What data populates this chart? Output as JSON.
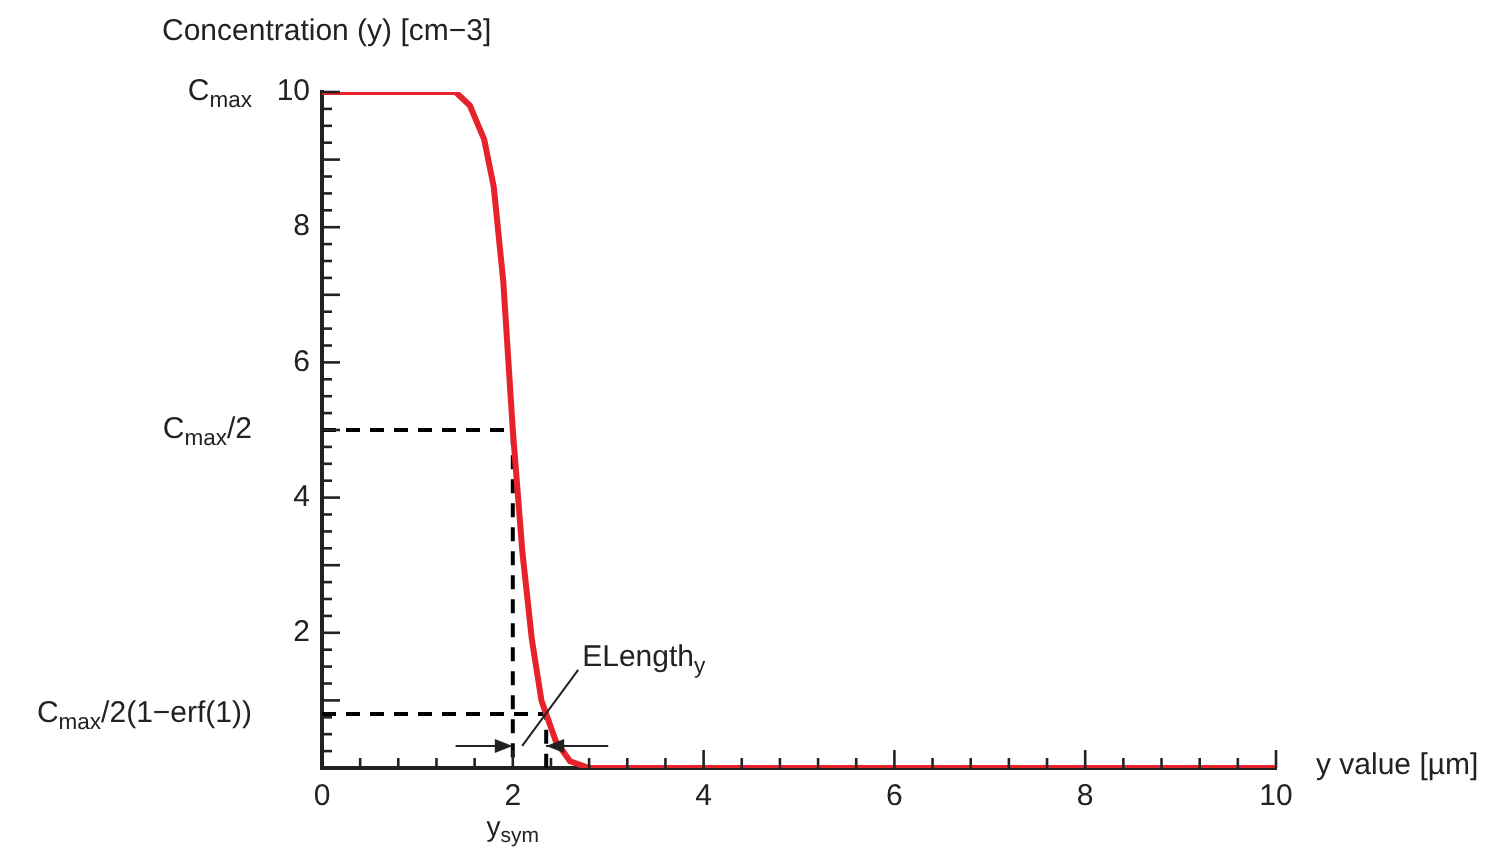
{
  "chart_data": {
    "type": "line",
    "xlabel": "y value [µm]",
    "ylabel": "Concentration (y) [cm−3]",
    "xlim": [
      0,
      10
    ],
    "ylim": [
      0,
      10
    ],
    "xticks": [
      0,
      {
        "value": 0.4,
        "label": null
      },
      {
        "value": 0.8,
        "label": null
      },
      {
        "value": 1.2,
        "label": null
      },
      {
        "value": 1.6,
        "label": null
      },
      2,
      {
        "value": 2.4,
        "label": null
      },
      {
        "value": 2.8,
        "label": null
      },
      {
        "value": 3.2,
        "label": null
      },
      {
        "value": 3.6,
        "label": null
      },
      4,
      {
        "value": 4.4,
        "label": null
      },
      {
        "value": 4.8,
        "label": null
      },
      {
        "value": 5.2,
        "label": null
      },
      {
        "value": 5.6,
        "label": null
      },
      6,
      {
        "value": 6.4,
        "label": null
      },
      {
        "value": 6.8,
        "label": null
      },
      {
        "value": 7.2,
        "label": null
      },
      {
        "value": 7.6,
        "label": null
      },
      8,
      {
        "value": 8.4,
        "label": null
      },
      {
        "value": 8.8,
        "label": null
      },
      {
        "value": 9.2,
        "label": null
      },
      {
        "value": 9.6,
        "label": null
      },
      10
    ],
    "yticks": [
      {
        "value": 0.25,
        "label": null
      },
      {
        "value": 0.5,
        "label": null
      },
      {
        "value": 0.75,
        "label": null
      },
      {
        "value": 1,
        "label": null
      },
      {
        "value": 1.25,
        "label": null
      },
      {
        "value": 1.5,
        "label": null
      },
      {
        "value": 1.75,
        "label": null
      },
      2,
      {
        "value": 2.25,
        "label": null
      },
      {
        "value": 2.5,
        "label": null
      },
      {
        "value": 2.75,
        "label": null
      },
      {
        "value": 3,
        "label": null
      },
      {
        "value": 3.25,
        "label": null
      },
      {
        "value": 3.5,
        "label": null
      },
      {
        "value": 3.75,
        "label": null
      },
      4,
      {
        "value": 4.25,
        "label": null
      },
      {
        "value": 4.5,
        "label": null
      },
      {
        "value": 4.75,
        "label": null
      },
      {
        "value": 5,
        "label": null
      },
      {
        "value": 5.25,
        "label": null
      },
      {
        "value": 5.5,
        "label": null
      },
      {
        "value": 5.75,
        "label": null
      },
      6,
      {
        "value": 6.25,
        "label": null
      },
      {
        "value": 6.5,
        "label": null
      },
      {
        "value": 6.75,
        "label": null
      },
      {
        "value": 7,
        "label": null
      },
      {
        "value": 7.25,
        "label": null
      },
      {
        "value": 7.5,
        "label": null
      },
      {
        "value": 7.75,
        "label": null
      },
      8,
      {
        "value": 8.25,
        "label": null
      },
      {
        "value": 8.5,
        "label": null
      },
      {
        "value": 8.75,
        "label": null
      },
      {
        "value": 9,
        "label": null
      },
      {
        "value": 9.25,
        "label": null
      },
      {
        "value": 9.5,
        "label": null
      },
      {
        "value": 9.75,
        "label": null
      },
      10
    ],
    "grid": false,
    "legend": false,
    "marker": "none",
    "series": [
      {
        "color": "#e8222a",
        "line_style": "solid",
        "x": [
          0,
          1,
          1.4,
          1.55,
          1.7,
          1.8,
          1.9,
          2,
          2.1,
          2.2,
          2.3,
          2.35,
          2.45,
          2.6,
          2.8,
          10
        ],
        "values": [
          10,
          10,
          10,
          9.8,
          9.3,
          8.6,
          7.2,
          5,
          3.2,
          1.9,
          1,
          0.8,
          0.4,
          0.1,
          0,
          0
        ]
      },
      {
        "color": "#000000",
        "line_style": "dashed",
        "x": [
          0,
          2,
          2
        ],
        "values": [
          5,
          5,
          0
        ]
      },
      {
        "color": "#000000",
        "line_style": "dashed",
        "x": [
          0,
          2.35,
          2.35
        ],
        "values": [
          0.8,
          0.8,
          0
        ]
      }
    ],
    "annotations": [
      {
        "text": "C$_{max}$",
        "x": 0,
        "y": 10
      },
      {
        "text": "C$_{max}$/2",
        "x": 0,
        "y": 5
      },
      {
        "text": "C$_{max}$/2(1−erf(1))",
        "x": 0,
        "y": 0.8
      },
      {
        "text": "y$_{sym}$",
        "x": 2,
        "y": 0
      },
      {
        "text": "ELength$_{y}$",
        "x": 2.35,
        "y": 0.8
      }
    ]
  }
}
